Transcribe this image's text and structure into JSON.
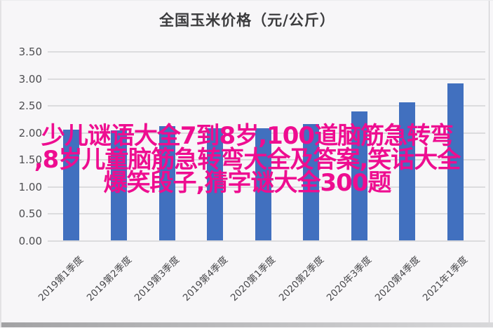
{
  "title": "全国玉米价格（元/公斤）",
  "watermark": {
    "color": "#ee0d90",
    "lines": [
      "少儿谜语大全7到8岁,100道脑筋急转弯",
      ",8岁儿童脑筋急转弯大全及答案,笑话大全",
      "爆笑段子,猜字谜大全300题"
    ]
  },
  "chart_data": {
    "type": "bar",
    "title": "全国玉米价格（元/公斤）",
    "xlabel": "",
    "ylabel": "",
    "categories": [
      "2019第1季度",
      "2019第2季度",
      "2019第3季度",
      "2019第4季度",
      "2020第1季度",
      "2020第2季度",
      "2020年3季度",
      "2020第4季度",
      "2021年1季度"
    ],
    "values": [
      2.05,
      2.04,
      2.11,
      2.08,
      2.08,
      2.15,
      2.38,
      2.55,
      2.9
    ],
    "ylim": [
      0,
      3.5
    ],
    "ytick_step": 0.5,
    "ytick_labels": [
      "3.50",
      "3.00",
      "2.50",
      "2.00",
      "1.50",
      "1.00",
      "0.50",
      "0.00"
    ],
    "grid": true,
    "legend": false,
    "bar_color": "#4170bf",
    "gridline_color": "#dcdcde"
  }
}
